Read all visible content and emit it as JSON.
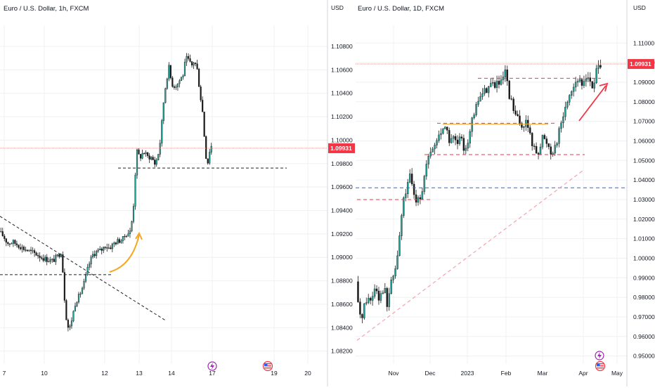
{
  "colors": {
    "up": "#26a69a",
    "down": "#ef5350",
    "body_dark": "#1b1b1b",
    "grid": "#eef0f3",
    "axis_text": "#131722",
    "price_line": "#f28b82",
    "price_tag": "#f23645",
    "arrow_orange": "#f5a623",
    "arrow_red": "#f23645",
    "blue_line": "#2962ff",
    "pink_dash": "#f4a3ae"
  },
  "chart_data": [
    {
      "type": "candlestick",
      "title": "Euro / U.S. Dollar, 1h, FXCM",
      "ylabel": "USD",
      "y_ticks": [
        "1.10800",
        "1.10600",
        "1.10400",
        "1.10200",
        "1.10000",
        "1.09800",
        "1.09600",
        "1.09400",
        "1.09200",
        "1.09000",
        "1.08800",
        "1.08600",
        "1.08400",
        "1.08200"
      ],
      "ylim": [
        1.0815,
        1.1092
      ],
      "x_ticks": [
        "7",
        "10",
        "12",
        "13",
        "14",
        "17",
        "19",
        "20"
      ],
      "last_price": "1.09931",
      "last_price_value": 1.09931,
      "price_path": [
        [
          0,
          1.0922
        ],
        [
          6,
          1.0918
        ],
        [
          12,
          1.0912
        ],
        [
          20,
          1.0913
        ],
        [
          28,
          1.091
        ],
        [
          36,
          1.0907
        ],
        [
          44,
          1.0905
        ],
        [
          52,
          1.0903
        ],
        [
          60,
          1.09
        ],
        [
          68,
          1.0898
        ],
        [
          76,
          1.0897
        ],
        [
          84,
          1.0902
        ],
        [
          88,
          1.0905
        ],
        [
          91,
          1.088
        ],
        [
          93,
          1.086
        ],
        [
          96,
          1.0843
        ],
        [
          99,
          1.0838
        ],
        [
          103,
          1.0848
        ],
        [
          108,
          1.0862
        ],
        [
          114,
          1.0868
        ],
        [
          120,
          1.0878
        ],
        [
          126,
          1.0892
        ],
        [
          132,
          1.0902
        ],
        [
          138,
          1.0905
        ],
        [
          144,
          1.0906
        ],
        [
          150,
          1.091
        ],
        [
          156,
          1.0908
        ],
        [
          162,
          1.0912
        ],
        [
          168,
          1.0914
        ],
        [
          174,
          1.0915
        ],
        [
          180,
          1.092
        ],
        [
          186,
          1.0922
        ],
        [
          190,
          1.0945
        ],
        [
          192,
          1.0968
        ],
        [
          195,
          1.099
        ],
        [
          199,
          1.0985
        ],
        [
          204,
          1.099
        ],
        [
          210,
          1.0986
        ],
        [
          216,
          1.0985
        ],
        [
          220,
          1.098
        ],
        [
          224,
          1.0985
        ],
        [
          228,
          1.1
        ],
        [
          232,
          1.103
        ],
        [
          236,
          1.105
        ],
        [
          240,
          1.1062
        ],
        [
          244,
          1.1048
        ],
        [
          248,
          1.1046
        ],
        [
          252,
          1.1048
        ],
        [
          256,
          1.1052
        ],
        [
          260,
          1.1056
        ],
        [
          264,
          1.107
        ],
        [
          268,
          1.1068
        ],
        [
          272,
          1.1063
        ],
        [
          276,
          1.1068
        ],
        [
          280,
          1.106
        ],
        [
          284,
          1.104
        ],
        [
          288,
          1.1022
        ],
        [
          291,
          1.0995
        ],
        [
          294,
          1.0977
        ],
        [
          297,
          1.099
        ],
        [
          300,
          1.0995
        ]
      ],
      "annotations": {
        "resistance_dashed_level": 1.09762,
        "lower_dashed_level": 1.08852,
        "trendline": [
          [
            0,
            1.0935
          ],
          [
            235,
            1.0846
          ]
        ]
      }
    },
    {
      "type": "candlestick",
      "title": "Euro / U.S. Dollar, 1D, FXCM",
      "ylabel": "USD",
      "y_ticks": [
        "1.11000",
        "1.10000",
        "1.09000",
        "1.08000",
        "1.07000",
        "1.06000",
        "1.05000",
        "1.04000",
        "1.03000",
        "1.02000",
        "1.01000",
        "1.00000",
        "0.99000",
        "0.98000",
        "0.97000",
        "0.96000",
        "0.95000"
      ],
      "ylim": [
        0.9495,
        1.1155
      ],
      "x_ticks": [
        "Nov",
        "Dec",
        "2023",
        "Feb",
        "Mar",
        "Apr",
        "May"
      ],
      "last_price": "1.09931",
      "last_price_value": 1.09931,
      "price_path": [
        [
          0,
          0.988
        ],
        [
          4,
          0.972
        ],
        [
          8,
          0.97
        ],
        [
          12,
          0.976
        ],
        [
          16,
          0.98
        ],
        [
          20,
          0.978
        ],
        [
          24,
          0.982
        ],
        [
          28,
          0.987
        ],
        [
          32,
          0.98
        ],
        [
          36,
          0.982
        ],
        [
          40,
          0.986
        ],
        [
          44,
          0.975
        ],
        [
          48,
          0.985
        ],
        [
          52,
          0.99
        ],
        [
          56,
          0.995
        ],
        [
          60,
          1.005
        ],
        [
          64,
          1.02
        ],
        [
          68,
          1.032
        ],
        [
          72,
          1.035
        ],
        [
          76,
          1.042
        ],
        [
          80,
          1.036
        ],
        [
          84,
          1.028
        ],
        [
          88,
          1.033
        ],
        [
          92,
          1.031
        ],
        [
          96,
          1.04
        ],
        [
          100,
          1.048
        ],
        [
          104,
          1.052
        ],
        [
          108,
          1.056
        ],
        [
          112,
          1.058
        ],
        [
          116,
          1.062
        ],
        [
          120,
          1.064
        ],
        [
          124,
          1.068
        ],
        [
          128,
          1.066
        ],
        [
          132,
          1.06
        ],
        [
          136,
          1.062
        ],
        [
          140,
          1.06
        ],
        [
          144,
          1.058
        ],
        [
          148,
          1.062
        ],
        [
          152,
          1.056
        ],
        [
          156,
          1.058
        ],
        [
          160,
          1.062
        ],
        [
          164,
          1.07
        ],
        [
          168,
          1.074
        ],
        [
          172,
          1.08
        ],
        [
          176,
          1.083
        ],
        [
          180,
          1.085
        ],
        [
          184,
          1.086
        ],
        [
          188,
          1.088
        ],
        [
          192,
          1.09
        ],
        [
          196,
          1.088
        ],
        [
          200,
          1.09
        ],
        [
          204,
          1.088
        ],
        [
          208,
          1.092
        ],
        [
          212,
          1.096
        ],
        [
          216,
          1.082
        ],
        [
          220,
          1.08
        ],
        [
          224,
          1.074
        ],
        [
          228,
          1.072
        ],
        [
          232,
          1.068
        ],
        [
          236,
          1.068
        ],
        [
          240,
          1.07
        ],
        [
          244,
          1.066
        ],
        [
          248,
          1.06
        ],
        [
          252,
          1.056
        ],
        [
          256,
          1.054
        ],
        [
          260,
          1.056
        ],
        [
          264,
          1.062
        ],
        [
          268,
          1.06
        ],
        [
          272,
          1.058
        ],
        [
          276,
          1.054
        ],
        [
          280,
          1.056
        ],
        [
          284,
          1.06
        ],
        [
          288,
          1.066
        ],
        [
          292,
          1.072
        ],
        [
          296,
          1.076
        ],
        [
          300,
          1.082
        ],
        [
          304,
          1.086
        ],
        [
          308,
          1.088
        ],
        [
          312,
          1.092
        ],
        [
          316,
          1.09
        ],
        [
          320,
          1.088
        ],
        [
          324,
          1.092
        ],
        [
          328,
          1.094
        ],
        [
          332,
          1.088
        ],
        [
          336,
          1.086
        ],
        [
          340,
          1.096
        ],
        [
          344,
          1.102
        ],
        [
          346,
          1.0993
        ]
      ],
      "annotations": {
        "dashed_levels_red": [
          1.092,
          1.069,
          1.053,
          1.03
        ],
        "orange_level": 1.0685,
        "blue_level": 1.036,
        "trend_support": [
          [
            0,
            0.958
          ],
          [
            320,
            1.045
          ]
        ]
      }
    }
  ]
}
